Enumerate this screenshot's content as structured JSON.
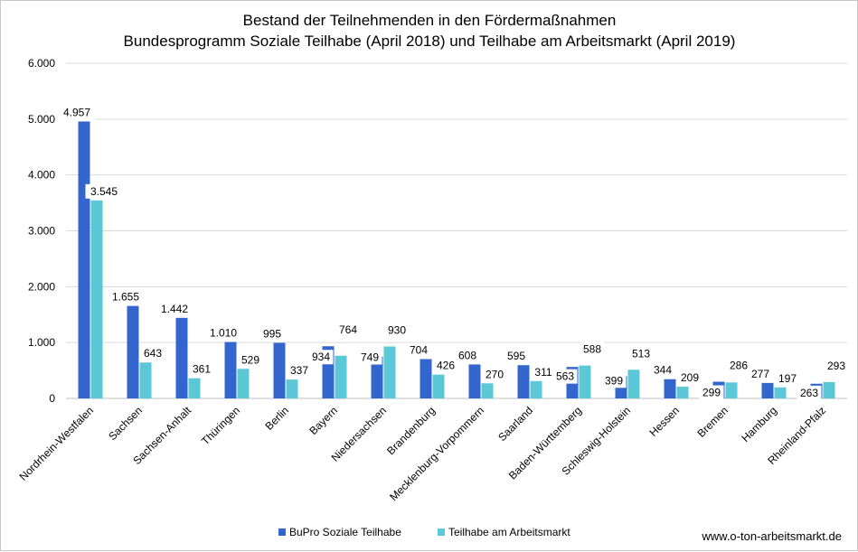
{
  "chart_data": {
    "type": "bar",
    "title": [
      "Bestand der Teilnehmenden in den Fördermaßnahmen",
      "Bundesprogramm Soziale Teilhabe (April 2018) und Teilhabe am Arbeitsmarkt (April 2019)"
    ],
    "xlabel": "",
    "ylabel": "",
    "ylim": [
      0,
      6000
    ],
    "yticks": [
      0,
      1000,
      2000,
      3000,
      4000,
      5000,
      6000
    ],
    "ytick_labels": [
      "0",
      "1.000",
      "2.000",
      "3.000",
      "4.000",
      "5.000",
      "6.000"
    ],
    "grid": true,
    "legend_position": "bottom-center",
    "categories": [
      "Nordrhein-Westfalen",
      "Sachsen",
      "Sachsen-Anhalt",
      "Thüringen",
      "Berlin",
      "Bayern",
      "Niedersachsen",
      "Brandenburg",
      "Mecklenburg-Vorpommern",
      "Saarland",
      "Baden-Württemberg",
      "Schleswig-Holstein",
      "Hessen",
      "Bremen",
      "Hamburg",
      "Rheinland-Pfalz"
    ],
    "series": [
      {
        "name": "BuPro Soziale Teilhabe",
        "color": "#3366cc",
        "values": [
          4957,
          1655,
          1442,
          1010,
          995,
          934,
          749,
          704,
          608,
          595,
          563,
          399,
          344,
          299,
          277,
          263
        ],
        "labels": [
          "4.957",
          "1.655",
          "1.442",
          "1.010",
          "995",
          "934",
          "749",
          "704",
          "608",
          "595",
          "563",
          "399",
          "344",
          "299",
          "277",
          "263"
        ]
      },
      {
        "name": "Teilhabe am Arbeitsmarkt",
        "color": "#5bc8d8",
        "values": [
          3545,
          643,
          361,
          529,
          337,
          764,
          930,
          426,
          270,
          311,
          588,
          513,
          209,
          286,
          197,
          293
        ],
        "labels": [
          "3.545",
          "643",
          "361",
          "529",
          "337",
          "764",
          "930",
          "426",
          "270",
          "311",
          "588",
          "513",
          "209",
          "286",
          "197",
          "293"
        ]
      }
    ]
  },
  "source": "www.o-ton-arbeitsmarkt.de"
}
